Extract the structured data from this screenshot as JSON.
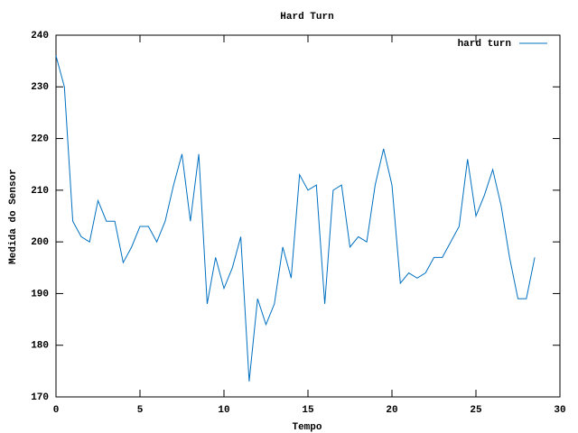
{
  "chart_data": {
    "type": "line",
    "title": "Hard Turn",
    "x_label": "Tempo",
    "y_label": "Medida do Sensor",
    "x": [
      0,
      0.5,
      1,
      1.5,
      2,
      2.5,
      3,
      3.5,
      4,
      4.5,
      5,
      5.5,
      6,
      6.5,
      7,
      7.5,
      8,
      8.5,
      9,
      9.5,
      10,
      10.5,
      11,
      11.5,
      12,
      12.5,
      13,
      13.5,
      14,
      14.5,
      15,
      15.5,
      16,
      16.5,
      17,
      17.5,
      18,
      18.5,
      19,
      19.5,
      20,
      20.5,
      21,
      21.5,
      22,
      22.5,
      23,
      23.5,
      24,
      24.5,
      25,
      25.5,
      26,
      26.5,
      27,
      27.5,
      28,
      28.5
    ],
    "series": [
      {
        "name": "hard turn",
        "color": "#0070c0",
        "values": [
          236,
          230,
          204,
          201,
          200,
          208,
          204,
          204,
          196,
          199,
          203,
          203,
          200,
          204,
          211,
          217,
          204,
          217,
          188,
          197,
          191,
          195,
          201,
          173,
          189,
          184,
          188,
          199,
          193,
          213,
          210,
          211,
          188,
          210,
          211,
          199,
          201,
          200,
          211,
          218,
          211,
          192,
          194,
          193,
          194,
          197,
          197,
          200,
          203,
          216,
          205,
          209,
          214,
          207,
          197,
          189,
          189,
          197
        ]
      }
    ],
    "xlim": [
      0,
      30
    ],
    "xticks": [
      0,
      5,
      10,
      15,
      20,
      25,
      30
    ],
    "ylim": [
      170,
      240
    ],
    "yticks": [
      170,
      180,
      190,
      200,
      210,
      220,
      230,
      240
    ],
    "legend": "top-right"
  }
}
